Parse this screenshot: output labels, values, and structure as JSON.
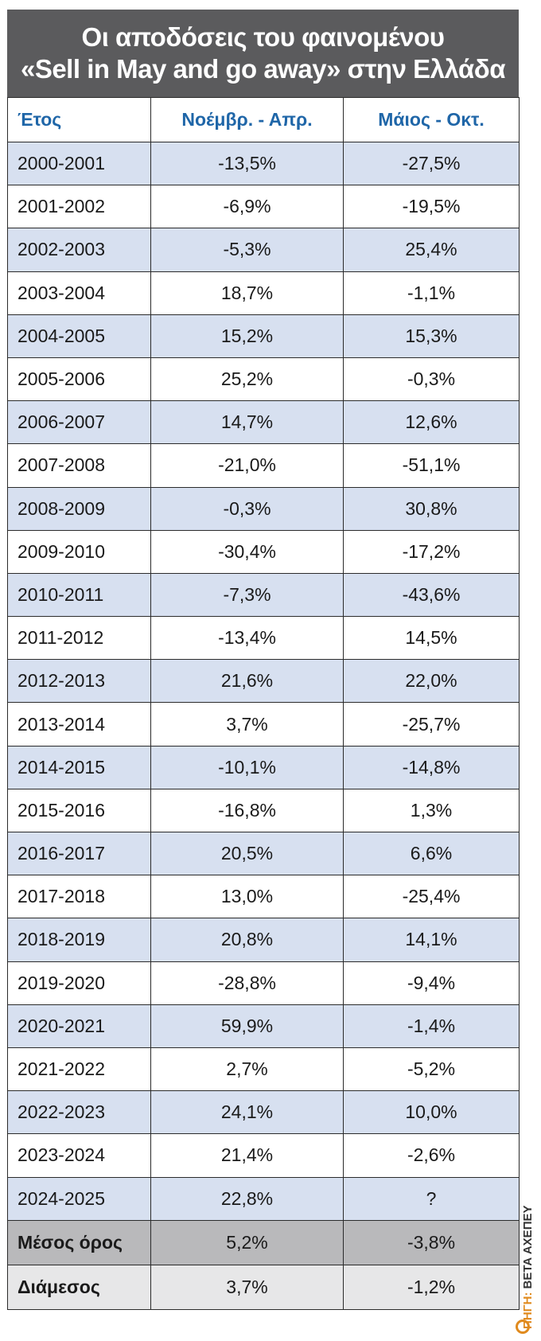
{
  "title_lines": [
    "Οι αποδόσεις του φαινομένου",
    "«Sell in May and go away» στην Ελλάδα"
  ],
  "headers": [
    "Έτος",
    "Νοέμβρ. - Απρ.",
    "Μάιος - Οκτ."
  ],
  "source": {
    "label": "ΠΗΓΗ:",
    "text": "BETA ΑΧΕΠΕΥ"
  },
  "chart_data": {
    "type": "table",
    "title": "Οι αποδόσεις του φαινομένου «Sell in May and go away» στην Ελλάδα",
    "columns": [
      "Έτος",
      "Νοέμβρ. - Απρ.",
      "Μάιος - Οκτ."
    ],
    "rows": [
      [
        "2000-2001",
        "-13,5%",
        "-27,5%"
      ],
      [
        "2001-2002",
        "-6,9%",
        "-19,5%"
      ],
      [
        "2002-2003",
        "-5,3%",
        "25,4%"
      ],
      [
        "2003-2004",
        "18,7%",
        "-1,1%"
      ],
      [
        "2004-2005",
        "15,2%",
        "15,3%"
      ],
      [
        "2005-2006",
        "25,2%",
        "-0,3%"
      ],
      [
        "2006-2007",
        "14,7%",
        "12,6%"
      ],
      [
        "2007-2008",
        "-21,0%",
        "-51,1%"
      ],
      [
        "2008-2009",
        "-0,3%",
        "30,8%"
      ],
      [
        "2009-2010",
        "-30,4%",
        "-17,2%"
      ],
      [
        "2010-2011",
        "-7,3%",
        "-43,6%"
      ],
      [
        "2011-2012",
        "-13,4%",
        "14,5%"
      ],
      [
        "2012-2013",
        "21,6%",
        "22,0%"
      ],
      [
        "2013-2014",
        "3,7%",
        "-25,7%"
      ],
      [
        "2014-2015",
        "-10,1%",
        "-14,8%"
      ],
      [
        "2015-2016",
        "-16,8%",
        "1,3%"
      ],
      [
        "2016-2017",
        "20,5%",
        "6,6%"
      ],
      [
        "2017-2018",
        "13,0%",
        "-25,4%"
      ],
      [
        "2018-2019",
        "20,8%",
        "14,1%"
      ],
      [
        "2019-2020",
        "-28,8%",
        "-9,4%"
      ],
      [
        "2020-2021",
        "59,9%",
        "-1,4%"
      ],
      [
        "2021-2022",
        "2,7%",
        "-5,2%"
      ],
      [
        "2022-2023",
        "24,1%",
        "10,0%"
      ],
      [
        "2023-2024",
        "21,4%",
        "-2,6%"
      ],
      [
        "2024-2025",
        "22,8%",
        "?"
      ]
    ],
    "summary": [
      [
        "Μέσος όρος",
        "5,2%",
        "-3,8%"
      ],
      [
        "Διάμεσος",
        "3,7%",
        "-1,2%"
      ]
    ]
  }
}
